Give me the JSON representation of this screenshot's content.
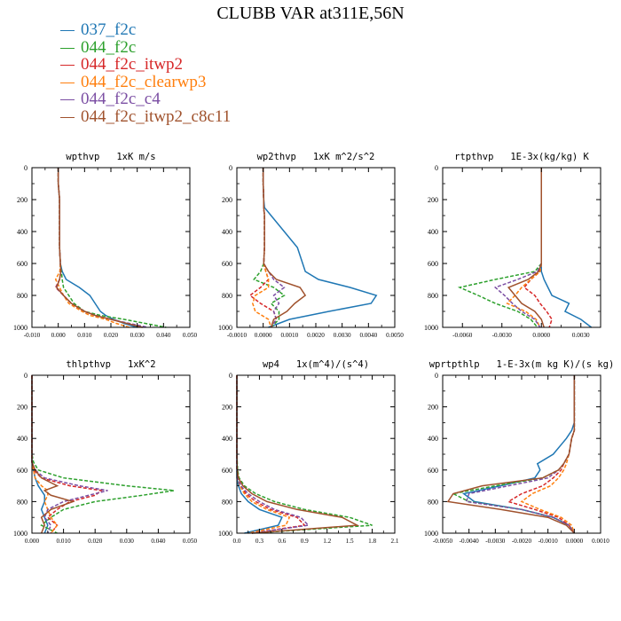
{
  "page": {
    "title": "CLUBB VAR at311E,56N"
  },
  "legend": [
    {
      "label": "037_f2c",
      "color": "#1f77b4"
    },
    {
      "label": "044_f2c",
      "color": "#2ca02c"
    },
    {
      "label": "044_f2c_itwp2",
      "color": "#d62728"
    },
    {
      "label": "044_f2c_clearwp3",
      "color": "#ff7f0e"
    },
    {
      "label": "044_f2c_c4",
      "color": "#7b4ea3"
    },
    {
      "label": "044_f2c_itwp2_c8c11",
      "color": "#a0522d"
    }
  ],
  "chart_data": [
    {
      "type": "line",
      "title": "wpthvp   1xK m/s",
      "xlim": [
        -0.01,
        0.05
      ],
      "ylim": [
        0,
        1000
      ],
      "y_inverted": true,
      "xticks": [
        "-0.010",
        "0.000",
        "0.010",
        "0.020",
        "0.030",
        "0.040",
        "0.050"
      ],
      "yticks": [
        "0",
        "200",
        "400",
        "600",
        "800",
        "1000"
      ],
      "y": [
        0,
        100,
        200,
        300,
        400,
        500,
        600,
        650,
        700,
        750,
        800,
        850,
        900,
        925,
        950,
        975,
        1000
      ],
      "series": [
        {
          "color": "#1f77b4",
          "dash": "solid",
          "values": [
            0,
            0,
            0.0005,
            0.0005,
            0.0005,
            0.0005,
            0.0008,
            0.0015,
            0.003,
            0.008,
            0.012,
            0.014,
            0.016,
            0.018,
            0.021,
            0.025,
            0.03
          ]
        },
        {
          "color": "#2ca02c",
          "dash": "dashed",
          "values": [
            0,
            0,
            0.0005,
            0.0005,
            0.0005,
            0.0005,
            0.0008,
            0.0012,
            0.0015,
            0.002,
            0.004,
            0.006,
            0.01,
            0.016,
            0.025,
            0.033,
            0.041
          ]
        },
        {
          "color": "#d62728",
          "dash": "dashed",
          "values": [
            0,
            0,
            0.0005,
            0.0005,
            0.0005,
            0.0005,
            0.0008,
            0.001,
            0.0005,
            -0.001,
            0.002,
            0.005,
            0.01,
            0.014,
            0.02,
            0.026,
            0.032
          ]
        },
        {
          "color": "#ff7f0e",
          "dash": "dashed",
          "values": [
            0,
            0,
            0.0005,
            0.0005,
            0.0005,
            0.0005,
            0.0008,
            0.0006,
            -0.001,
            0.0005,
            0.002,
            0.004,
            0.009,
            0.012,
            0.018,
            0.022,
            0.027
          ]
        },
        {
          "color": "#7b4ea3",
          "dash": "dashed",
          "values": [
            0,
            0,
            0.0005,
            0.0005,
            0.0005,
            0.0005,
            0.0008,
            0.001,
            0.0005,
            -0.0008,
            0.002,
            0.005,
            0.01,
            0.014,
            0.02,
            0.027,
            0.034
          ]
        },
        {
          "color": "#a0522d",
          "dash": "solid",
          "values": [
            0,
            0,
            0.0005,
            0.0005,
            0.0005,
            0.0005,
            0.0008,
            0.001,
            0.0005,
            -0.0006,
            0.002,
            0.005,
            0.01,
            0.014,
            0.02,
            0.026,
            0.032
          ]
        }
      ]
    },
    {
      "type": "line",
      "title": "wp2thvp   1xK m^2/s^2",
      "xlim": [
        -0.001,
        0.005
      ],
      "ylim": [
        0,
        1000
      ],
      "y_inverted": true,
      "xticks": [
        "-0.0010",
        "0.0000",
        "0.0010",
        "0.0020",
        "0.0030",
        "0.0040",
        "0.0050"
      ],
      "yticks": [
        "0",
        "200",
        "400",
        "600",
        "800",
        "1000"
      ],
      "y": [
        0,
        100,
        200,
        250,
        300,
        400,
        500,
        600,
        650,
        700,
        750,
        800,
        850,
        900,
        950,
        1000
      ],
      "series": [
        {
          "color": "#1f77b4",
          "dash": "solid",
          "values": [
            0,
            0,
            2e-05,
            5e-05,
            0.0003,
            0.0008,
            0.0013,
            0.0015,
            0.0016,
            0.0021,
            0.0033,
            0.0043,
            0.0041,
            0.0025,
            0.001,
            0.0002
          ]
        },
        {
          "color": "#2ca02c",
          "dash": "dashed",
          "values": [
            0,
            0,
            2e-05,
            2e-05,
            5e-05,
            5e-05,
            5e-05,
            2e-05,
            -0.0001,
            -0.00035,
            0.0004,
            0.0008,
            0.0003,
            0.0006,
            0.0006,
            0.0003
          ]
        },
        {
          "color": "#d62728",
          "dash": "dashed",
          "values": [
            0,
            0,
            2e-05,
            2e-05,
            5e-05,
            5e-05,
            5e-05,
            2e-05,
            0.0001,
            0.0002,
            -0.0001,
            -0.0005,
            -0.0001,
            0.0004,
            0.0005,
            0.0003
          ]
        },
        {
          "color": "#ff7f0e",
          "dash": "dashed",
          "values": [
            0,
            0,
            2e-05,
            2e-05,
            5e-05,
            5e-05,
            5e-05,
            2e-05,
            0.0001,
            0.0002,
            0.0002,
            -0.0003,
            -0.0004,
            -0.0003,
            0.0002,
            0.0003
          ]
        },
        {
          "color": "#7b4ea3",
          "dash": "dashed",
          "values": [
            0,
            0,
            2e-05,
            2e-05,
            5e-05,
            5e-05,
            5e-05,
            2e-05,
            0.0002,
            0.0004,
            0.0008,
            0.0004,
            0.0006,
            0.0004,
            0.0005,
            0.0003
          ]
        },
        {
          "color": "#a0522d",
          "dash": "solid",
          "values": [
            0,
            0,
            2e-05,
            2e-05,
            5e-05,
            5e-05,
            5e-05,
            2e-05,
            0.0002,
            0.0005,
            0.0014,
            0.0016,
            0.0012,
            0.0009,
            0.0004,
            0.0003
          ]
        }
      ]
    },
    {
      "type": "line",
      "title": "rtpthvp   1E-3x(kg/kg) K",
      "xlim": [
        -0.0075,
        0.0045
      ],
      "ylim": [
        0,
        1000
      ],
      "y_inverted": true,
      "xticks": [
        "-0.0060",
        "-0.0030",
        "0.0000",
        "0.0030"
      ],
      "xtick_values": [
        -0.006,
        -0.003,
        0,
        0.003
      ],
      "yticks": [
        "0",
        "200",
        "400",
        "600",
        "800",
        "1000"
      ],
      "y": [
        0,
        100,
        200,
        300,
        400,
        500,
        600,
        650,
        700,
        750,
        800,
        850,
        900,
        950,
        1000
      ],
      "series": [
        {
          "color": "#1f77b4",
          "dash": "solid",
          "values": [
            0,
            0,
            0,
            0,
            0,
            0,
            0,
            0,
            0.0002,
            0.0005,
            0.0008,
            0.0021,
            0.0018,
            0.003,
            0.0038
          ]
        },
        {
          "color": "#2ca02c",
          "dash": "dashed",
          "values": [
            0,
            0,
            0,
            0,
            0,
            0,
            0,
            -0.0005,
            -0.0035,
            -0.0062,
            -0.0048,
            -0.0035,
            -0.0018,
            -0.0008,
            -0.0003
          ]
        },
        {
          "color": "#d62728",
          "dash": "dashed",
          "values": [
            0,
            0,
            0,
            0,
            0,
            0,
            0,
            -0.0001,
            -0.0008,
            -0.0013,
            -0.0005,
            -0.0001,
            0.0004,
            0.0008,
            0.0006
          ]
        },
        {
          "color": "#ff7f0e",
          "dash": "dashed",
          "values": [
            0,
            0,
            0,
            0,
            0,
            0,
            0,
            -0.0001,
            -0.0008,
            -0.0015,
            -0.002,
            -0.0026,
            -0.0012,
            -0.0004,
            -0.0001
          ]
        },
        {
          "color": "#7b4ea3",
          "dash": "dashed",
          "values": [
            0,
            0,
            0,
            0,
            0,
            0,
            0,
            -0.0003,
            -0.0018,
            -0.0035,
            -0.0028,
            -0.0022,
            -0.0015,
            -0.0005,
            -0.0001
          ]
        },
        {
          "color": "#a0522d",
          "dash": "solid",
          "values": [
            0,
            0,
            0,
            0,
            0,
            0,
            0,
            -0.0002,
            -0.001,
            -0.0025,
            -0.002,
            -0.0015,
            -0.0005,
            0,
            0.0002
          ]
        }
      ]
    },
    {
      "type": "line",
      "title": "thlpthvp   1xK^2",
      "xlim": [
        0,
        0.05
      ],
      "ylim": [
        0,
        1000
      ],
      "y_inverted": true,
      "xticks": [
        "0.000",
        "0.010",
        "0.020",
        "0.030",
        "0.040",
        "0.050"
      ],
      "yticks": [
        "0",
        "200",
        "400",
        "600",
        "800",
        "1000"
      ],
      "y": [
        0,
        100,
        200,
        300,
        400,
        500,
        550,
        600,
        650,
        700,
        730,
        760,
        800,
        850,
        900,
        950,
        1000
      ],
      "series": [
        {
          "color": "#1f77b4",
          "dash": "solid",
          "values": [
            0,
            0,
            0,
            0,
            0,
            0,
            0,
            0.0005,
            0.001,
            0.002,
            0.003,
            0.004,
            0.004,
            0.003,
            0.004,
            0.005,
            0.004
          ]
        },
        {
          "color": "#2ca02c",
          "dash": "dashed",
          "values": [
            0,
            0,
            0,
            0,
            0,
            0,
            0.0005,
            0.002,
            0.01,
            0.03,
            0.045,
            0.035,
            0.02,
            0.01,
            0.006,
            0.003,
            0.008
          ]
        },
        {
          "color": "#d62728",
          "dash": "dashed",
          "values": [
            0,
            0,
            0,
            0,
            0,
            0,
            0,
            0.0005,
            0.003,
            0.012,
            0.022,
            0.02,
            0.012,
            0.008,
            0.005,
            0.008,
            0.006
          ]
        },
        {
          "color": "#ff7f0e",
          "dash": "dashed",
          "values": [
            0,
            0,
            0,
            0,
            0,
            0,
            0,
            0.0005,
            0.001,
            0.003,
            0.005,
            0.005,
            0.004,
            0.005,
            0.006,
            0.008,
            0.006
          ]
        },
        {
          "color": "#7b4ea3",
          "dash": "dashed",
          "values": [
            0,
            0,
            0,
            0,
            0,
            0,
            0,
            0.001,
            0.004,
            0.015,
            0.024,
            0.018,
            0.01,
            0.005,
            0.004,
            0.006,
            0.005
          ]
        },
        {
          "color": "#a0522d",
          "dash": "solid",
          "values": [
            0,
            0,
            0,
            0,
            0,
            0,
            0,
            0.001,
            0.003,
            0.008,
            0.004,
            0.006,
            0.013,
            0.006,
            0.003,
            0.004,
            0.003
          ]
        }
      ]
    },
    {
      "type": "line",
      "title": "wp4   1x(m^4)/(s^4)",
      "xlim": [
        0,
        2.1
      ],
      "ylim": [
        0,
        1000
      ],
      "y_inverted": true,
      "xticks": [
        "0.0",
        "0.3",
        "0.6",
        "0.9",
        "1.2",
        "1.5",
        "1.8",
        "2.1"
      ],
      "yticks": [
        "0",
        "200",
        "400",
        "600",
        "800",
        "1000"
      ],
      "y": [
        0,
        100,
        200,
        300,
        400,
        500,
        600,
        650,
        700,
        750,
        800,
        850,
        900,
        950,
        1000
      ],
      "series": [
        {
          "color": "#1f77b4",
          "dash": "solid",
          "values": [
            0,
            0,
            0,
            0,
            0,
            0,
            0,
            0,
            0.02,
            0.06,
            0.15,
            0.3,
            0.6,
            0.55,
            0.1
          ]
        },
        {
          "color": "#2ca02c",
          "dash": "dashed",
          "values": [
            0,
            0,
            0,
            0,
            0,
            0,
            0.01,
            0.03,
            0.1,
            0.25,
            0.5,
            0.9,
            1.5,
            1.8,
            0.2
          ]
        },
        {
          "color": "#d62728",
          "dash": "dashed",
          "values": [
            0,
            0,
            0,
            0,
            0,
            0,
            0,
            0.01,
            0.05,
            0.12,
            0.25,
            0.45,
            0.8,
            0.9,
            0.2
          ]
        },
        {
          "color": "#ff7f0e",
          "dash": "dashed",
          "values": [
            0,
            0,
            0,
            0,
            0,
            0,
            0,
            0.01,
            0.04,
            0.1,
            0.2,
            0.4,
            0.7,
            0.65,
            0.15
          ]
        },
        {
          "color": "#7b4ea3",
          "dash": "dashed",
          "values": [
            0,
            0,
            0,
            0,
            0,
            0,
            0,
            0.01,
            0.05,
            0.15,
            0.3,
            0.5,
            0.85,
            0.95,
            0.2
          ]
        },
        {
          "color": "#a0522d",
          "dash": "solid",
          "values": [
            0,
            0,
            0,
            0,
            0,
            0,
            0.005,
            0.02,
            0.08,
            0.2,
            0.4,
            0.8,
            1.4,
            1.6,
            0.2
          ]
        }
      ]
    },
    {
      "type": "line",
      "title": "wprtpthlp   1-E-3x(m kg K)/(s kg)",
      "xlim": [
        -0.005,
        0.001
      ],
      "ylim": [
        0,
        1000
      ],
      "y_inverted": true,
      "xticks": [
        "-0.0050",
        "-0.0040",
        "-0.0030",
        "-0.0020",
        "-0.0010",
        "0.0000",
        "0.0010"
      ],
      "yticks": [
        "0",
        "200",
        "400",
        "600",
        "800",
        "1000"
      ],
      "y": [
        0,
        100,
        200,
        300,
        350,
        400,
        500,
        560,
        600,
        650,
        700,
        750,
        800,
        850,
        900,
        950,
        1000
      ],
      "series": [
        {
          "color": "#1f77b4",
          "dash": "solid",
          "values": [
            0,
            0,
            0,
            0,
            -0.0001,
            -0.0003,
            -0.0008,
            -0.0014,
            -0.0013,
            -0.0015,
            -0.0028,
            -0.0042,
            -0.0038,
            -0.002,
            -0.0008,
            -0.0002,
            0
          ]
        },
        {
          "color": "#2ca02c",
          "dash": "dashed",
          "values": [
            0,
            0,
            0,
            0,
            0,
            -0.0001,
            -0.0002,
            -0.0004,
            -0.0006,
            -0.0012,
            -0.003,
            -0.0046,
            -0.004,
            -0.002,
            -0.0008,
            -0.0002,
            0
          ]
        },
        {
          "color": "#d62728",
          "dash": "dashed",
          "values": [
            0,
            0,
            0,
            0,
            0,
            -0.0001,
            -0.0002,
            -0.0004,
            -0.0005,
            -0.0008,
            -0.0012,
            -0.002,
            -0.0025,
            -0.0015,
            -0.0006,
            -0.0002,
            0
          ]
        },
        {
          "color": "#ff7f0e",
          "dash": "dashed",
          "values": [
            0,
            0,
            0,
            0,
            0,
            -0.0001,
            -0.0002,
            -0.0003,
            -0.0004,
            -0.0006,
            -0.0009,
            -0.0016,
            -0.002,
            -0.0013,
            -0.0005,
            -0.0001,
            0
          ]
        },
        {
          "color": "#7b4ea3",
          "dash": "dashed",
          "values": [
            0,
            0,
            0,
            0,
            0,
            -0.0001,
            -0.0002,
            -0.0004,
            -0.0006,
            -0.001,
            -0.0025,
            -0.004,
            -0.0041,
            -0.002,
            -0.0008,
            -0.0002,
            0
          ]
        },
        {
          "color": "#a0522d",
          "dash": "solid",
          "values": [
            0,
            0,
            0,
            0,
            0,
            -0.0001,
            -0.0002,
            -0.0004,
            -0.0006,
            -0.0012,
            -0.0035,
            -0.0046,
            -0.0048,
            -0.0028,
            -0.001,
            -0.0003,
            0
          ]
        }
      ]
    }
  ]
}
